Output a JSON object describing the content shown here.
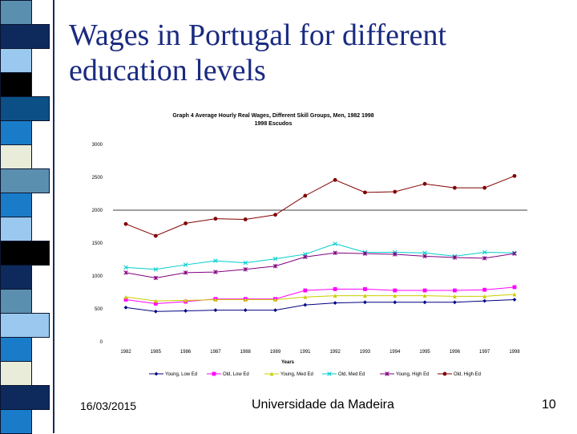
{
  "slide": {
    "title_line1": "Wages in Portugal for different",
    "title_line2": "education levels",
    "footer_date": "16/03/2015",
    "footer_center": "Universidade da Madeira",
    "slide_number": "10"
  },
  "colors": {
    "title": "#1a2a80",
    "strip": [
      "#5b8fb0",
      "#0e2a5c",
      "#9ac8ee",
      "#000000",
      "#0c4f86",
      "#1a7cc8",
      "#e8ecd8",
      "#5b8fb0",
      "#1a7cc8",
      "#9ac8ee",
      "#000000",
      "#0e2a5c",
      "#5b8fb0",
      "#9ac8ee",
      "#1a7cc8",
      "#e8ecd8",
      "#0e2a5c",
      "#1a7cc8"
    ]
  },
  "chart_data": {
    "type": "line",
    "title": "Graph 4   Average Hourly Real Wages, Different Skill Groups, Men, 1982 1998",
    "subtitle": "1998 Escudos",
    "xlabel": "Years",
    "ylabel": "",
    "x": [
      "1982",
      "1985",
      "1986",
      "1987",
      "1988",
      "1989",
      "1991",
      "1992",
      "1993",
      "1994",
      "1995",
      "1996",
      "1997",
      "1998"
    ],
    "ylim": [
      0,
      3000
    ],
    "yticks": [
      "0",
      "500",
      "1000",
      "1500",
      "2000",
      "2500",
      "3000"
    ],
    "reference_line": 2000,
    "legend_position": "bottom",
    "series": [
      {
        "name": "Young, Low Ed",
        "color": "#000080",
        "marker": "diamond",
        "values": [
          520,
          460,
          470,
          480,
          480,
          480,
          560,
          590,
          600,
          600,
          600,
          600,
          620,
          640
        ]
      },
      {
        "name": "Old, Low Ed",
        "color": "#ff00ff",
        "marker": "square",
        "values": [
          640,
          580,
          610,
          650,
          650,
          650,
          780,
          800,
          800,
          780,
          780,
          780,
          790,
          830
        ]
      },
      {
        "name": "Young, Med Ed",
        "color": "#cccc00",
        "marker": "triangle",
        "values": [
          680,
          620,
          630,
          640,
          640,
          640,
          680,
          700,
          700,
          700,
          700,
          690,
          690,
          720
        ]
      },
      {
        "name": "Old, Med Ed",
        "color": "#00cccc",
        "marker": "x",
        "values": [
          1130,
          1100,
          1170,
          1230,
          1200,
          1260,
          1330,
          1490,
          1360,
          1360,
          1350,
          1300,
          1360,
          1350
        ]
      },
      {
        "name": "Young, High Ed",
        "color": "#800080",
        "marker": "star",
        "values": [
          1050,
          970,
          1050,
          1060,
          1100,
          1150,
          1290,
          1350,
          1340,
          1330,
          1300,
          1280,
          1270,
          1340
        ]
      },
      {
        "name": "Old, High Ed",
        "color": "#800000",
        "marker": "circle",
        "values": [
          1790,
          1610,
          1800,
          1870,
          1860,
          1930,
          2220,
          2460,
          2270,
          2280,
          2400,
          2340,
          2340,
          2520
        ]
      }
    ]
  }
}
